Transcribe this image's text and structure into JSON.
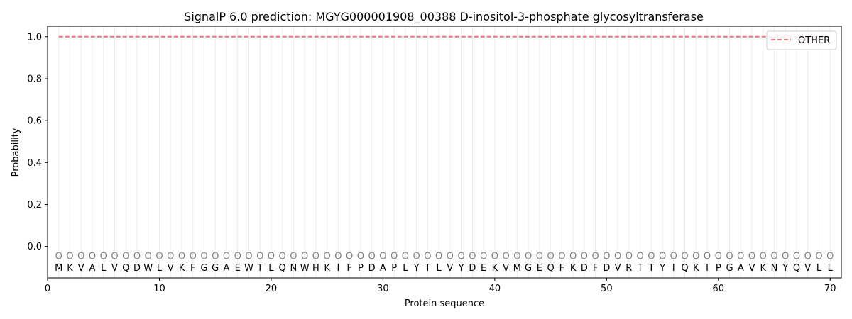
{
  "chart_data": {
    "type": "line",
    "title": "SignalP 6.0 prediction: MGYG000001908_00388 D-inositol-3-phosphate glycosyltransferase",
    "xlabel": "Protein sequence",
    "ylabel": "Probability",
    "xlim": [
      0,
      71
    ],
    "ylim": [
      -0.15,
      1.05
    ],
    "x_ticks": [
      0,
      10,
      20,
      30,
      40,
      50,
      60,
      70
    ],
    "y_ticks": [
      0.0,
      0.2,
      0.4,
      0.6,
      0.8,
      1.0
    ],
    "y_tick_labels": [
      "0.0",
      "0.2",
      "0.4",
      "0.6",
      "0.8",
      "1.0"
    ],
    "grid": "vertical lines at each residue",
    "legend_position": "top-right",
    "sequence": [
      "M",
      "K",
      "V",
      "A",
      "L",
      "V",
      "Q",
      "D",
      "W",
      "L",
      "V",
      "K",
      "F",
      "G",
      "G",
      "A",
      "E",
      "W",
      "T",
      "L",
      "Q",
      "N",
      "W",
      "H",
      "K",
      "I",
      "F",
      "P",
      "D",
      "A",
      "P",
      "L",
      "Y",
      "T",
      "L",
      "V",
      "Y",
      "D",
      "E",
      "K",
      "V",
      "M",
      "G",
      "E",
      "Q",
      "F",
      "K",
      "D",
      "F",
      "D",
      "V",
      "R",
      "T",
      "T",
      "Y",
      "I",
      "Q",
      "K",
      "I",
      "P",
      "G",
      "A",
      "V",
      "K",
      "N",
      "Y",
      "Q",
      "V",
      "L",
      "L"
    ],
    "region_label": "O",
    "series": [
      {
        "name": "OTHER",
        "color": "#e87777",
        "style": "dashed",
        "x_range": [
          1,
          70
        ],
        "value": 1.0
      }
    ]
  }
}
